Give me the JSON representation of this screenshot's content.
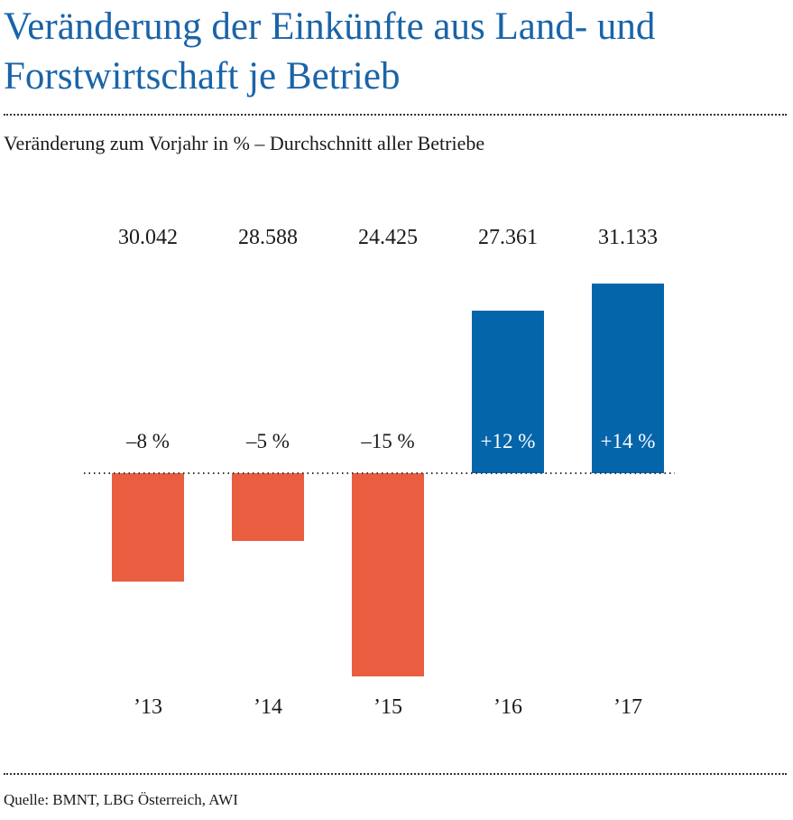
{
  "title": "Veränderung der Einkünfte aus Land- und Forstwirtschaft je Betrieb",
  "subtitle": "Veränderung zum Vorjahr in % – Durchschnitt aller Betriebe",
  "source": "Quelle: BMNT, LBG Österreich, AWI",
  "colors": {
    "title": "#1a64a8",
    "positive": "#0565ab",
    "negative": "#e95d40"
  },
  "chart_data": {
    "type": "bar",
    "categories": [
      "’13",
      "’14",
      "’15",
      "’16",
      "’17"
    ],
    "values": [
      -8,
      -5,
      -15,
      12,
      14
    ],
    "value_labels": [
      "–8 %",
      "–5 %",
      "–15 %",
      "+12 %",
      "+14 %"
    ],
    "incomes": [
      "30.042",
      "28.588",
      "24.425",
      "27.361",
      "31.133"
    ],
    "title": "",
    "xlabel": "",
    "ylabel": "",
    "ylim": [
      -15,
      14
    ],
    "grid": false,
    "legend": "none"
  }
}
